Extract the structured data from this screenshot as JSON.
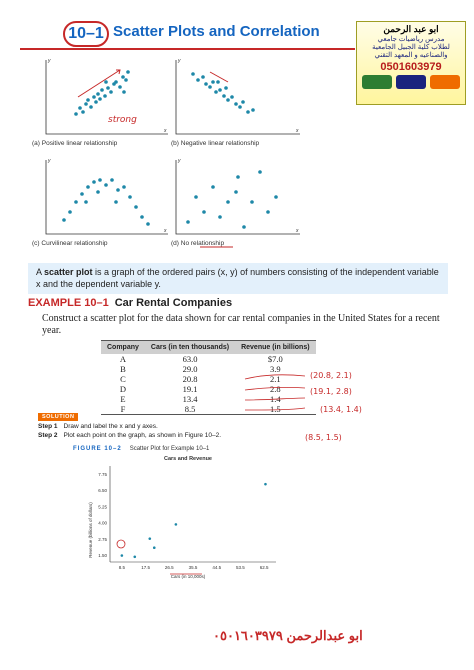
{
  "header": {
    "lesson_number": "10–1",
    "title": "Scatter Plots and Correlation"
  },
  "ad": {
    "name": "ابو عبد الرحمن",
    "line1": "مدرس رياضيات جامعي",
    "line2": "لطلاب كلية الجبيل الجامعية",
    "line3": "والصناعيه و المعهد التقني",
    "phone": "0501603979"
  },
  "panels": [
    {
      "caption": "(a) Positive linear relationship",
      "note": "strong"
    },
    {
      "caption": "(b) Negative linear relationship"
    },
    {
      "caption": "(c) Curvilinear relationship"
    },
    {
      "caption": "(d) No relationship"
    }
  ],
  "axis_letters": {
    "x": "x",
    "y": "y"
  },
  "definition": {
    "term": "scatter plot",
    "before": "A ",
    "after": " is a graph of the ordered pairs (x, y) of numbers consisting of the independent variable x and the dependent variable y."
  },
  "example": {
    "label": "EXAMPLE 10–1",
    "title": "Car Rental Companies",
    "intro": "Construct a scatter plot for the data shown for car rental companies in the United States for a recent year."
  },
  "table": {
    "headers": [
      "Company",
      "Cars (in ten thousands)",
      "Revenue (in billions)"
    ],
    "rows": [
      [
        "A",
        "63.0",
        "$7.0"
      ],
      [
        "B",
        "29.0",
        "3.9"
      ],
      [
        "C",
        "20.8",
        "2.1"
      ],
      [
        "D",
        "19.1",
        "2.8"
      ],
      [
        "E",
        "13.4",
        "1.4"
      ],
      [
        "F",
        "8.5",
        "1.5"
      ]
    ]
  },
  "handwritten_pairs": [
    "(20.8, 2.1)",
    "(19.1, 2.8)",
    "(13.4, 1.4)",
    "(8.5, 1.5)"
  ],
  "solution": {
    "label": "SOLUTION",
    "step1_label": "Step 1",
    "step1": "Draw and label the x and y axes.",
    "step2_label": "Step 2",
    "step2": "Plot each point on the graph, as shown in Figure 10–2."
  },
  "figure": {
    "label": "FIGURE 10–2",
    "title": "Scatter Plot for Example 10–1"
  },
  "chart_data": {
    "type": "scatter",
    "title": "Cars and Revenue",
    "xlabel": "Cars (in 10,000s)",
    "ylabel": "Revenue (billions of dollars)",
    "x_ticks": [
      "8.5",
      "17.5",
      "26.5",
      "35.5",
      "44.5",
      "53.5",
      "62.5"
    ],
    "y_ticks": [
      "1.50",
      "2.75",
      "4.00",
      "5.25",
      "6.50",
      "7.75"
    ],
    "xlim": [
      4,
      67
    ],
    "ylim": [
      1.0,
      8.4
    ],
    "x": [
      63.0,
      29.0,
      20.8,
      19.1,
      13.4,
      8.5
    ],
    "y": [
      7.0,
      3.9,
      2.1,
      2.8,
      1.4,
      1.5
    ]
  },
  "footer": "ابو عبدالرحمن ٠٥٠١٦٠٣٩٧٩",
  "colors": {
    "accent": "#1565c0",
    "ink": "#c62828",
    "solution": "#ef6c00",
    "def_bg": "#e3f0fb"
  }
}
